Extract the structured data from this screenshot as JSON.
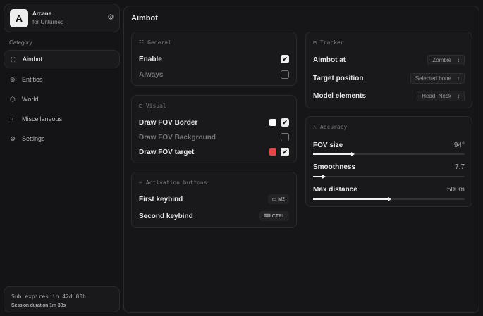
{
  "brand": {
    "logo": "A",
    "name": "Arcane",
    "subtitle": "for Unturned"
  },
  "sidebar": {
    "category_label": "Category",
    "items": [
      {
        "label": "Aimbot",
        "icon": "crosshair-icon",
        "glyph": "⬚"
      },
      {
        "label": "Entities",
        "icon": "entities-icon",
        "glyph": "⊛"
      },
      {
        "label": "World",
        "icon": "cube-icon",
        "glyph": "⬡"
      },
      {
        "label": "Miscellaneous",
        "icon": "grid-icon",
        "glyph": "⌗"
      },
      {
        "label": "Settings",
        "icon": "gear-icon",
        "glyph": "⚙"
      }
    ],
    "active": "Aimbot"
  },
  "subscription": {
    "expires": "Sub expires in 42d 00h",
    "session": "Session duration 1m 38s"
  },
  "page": {
    "title": "Aimbot"
  },
  "general": {
    "title": "General",
    "enable": {
      "label": "Enable",
      "checked": true
    },
    "always": {
      "label": "Always",
      "checked": false
    }
  },
  "visual": {
    "title": "Visual",
    "border": {
      "label": "Draw FOV Border",
      "checked": true,
      "color": "#ffffff"
    },
    "background": {
      "label": "Draw FOV Background",
      "checked": false
    },
    "target": {
      "label": "Draw FOV target",
      "checked": true,
      "color": "#e84545"
    }
  },
  "activation": {
    "title": "Activation buttons",
    "first": {
      "label": "First keybind",
      "value": "M2"
    },
    "second": {
      "label": "Second keybind",
      "value": "CTRL"
    }
  },
  "tracker": {
    "title": "Tracker",
    "aimbot_at": {
      "label": "Aimbot at",
      "value": "Zombie"
    },
    "target_position": {
      "label": "Target position",
      "value": "Selected bone"
    },
    "model_elements": {
      "label": "Model elements",
      "value": "Head, Neck"
    }
  },
  "accuracy": {
    "title": "Accuracy",
    "fov": {
      "label": "FOV size",
      "value": "94°",
      "fraction": 0.26
    },
    "smoothness": {
      "label": "Smoothness",
      "value": "7.7",
      "fraction": 0.07
    },
    "distance": {
      "label": "Max distance",
      "value": "500m",
      "fraction": 0.5
    }
  }
}
